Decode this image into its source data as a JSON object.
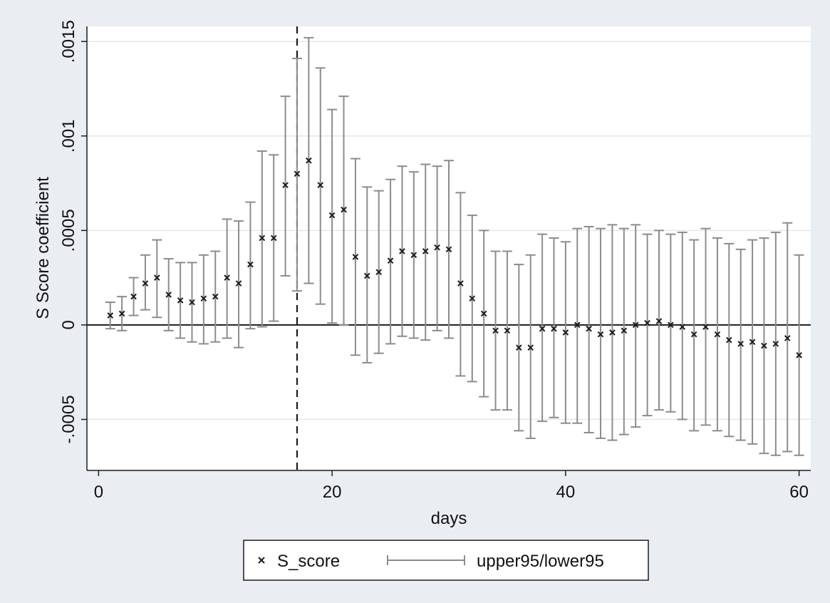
{
  "chart_data": {
    "type": "scatter",
    "title": "",
    "xlabel": "days",
    "ylabel": "S Score coefficient",
    "xlim": [
      -1,
      61
    ],
    "ylim": [
      -0.00077,
      0.00158
    ],
    "x_ticks": [
      {
        "value": 0,
        "label": "0"
      },
      {
        "value": 20,
        "label": "20"
      },
      {
        "value": 40,
        "label": "40"
      },
      {
        "value": 60,
        "label": "60"
      }
    ],
    "y_ticks": [
      {
        "value": -0.0005,
        "label": "-.0005"
      },
      {
        "value": 0,
        "label": "0"
      },
      {
        "value": 0.0005,
        "label": ".0005"
      },
      {
        "value": 0.001,
        "label": ".001"
      },
      {
        "value": 0.0015,
        "label": ".0015"
      }
    ],
    "grid": true,
    "zero_line": true,
    "reference_line_x": 17,
    "legend": {
      "placement": "bottom",
      "entries": [
        "S_score",
        "upper95/lower95"
      ]
    },
    "colors": {
      "outer_background": "#eaeef2",
      "plot_background": "#ffffff",
      "gridline": "#e4e6ea",
      "marker": "#1c1c1c",
      "error_bar": "#8c8c8c",
      "zero_line": "#1c1c1c",
      "reference_line": "#1c1c1c",
      "axis": "#1c1c1c"
    },
    "series": [
      {
        "name": "S_score",
        "x": [
          1,
          2,
          3,
          4,
          5,
          6,
          7,
          8,
          9,
          10,
          11,
          12,
          13,
          14,
          15,
          16,
          17,
          18,
          19,
          20,
          21,
          22,
          23,
          24,
          25,
          26,
          27,
          28,
          29,
          30,
          31,
          32,
          33,
          34,
          35,
          36,
          37,
          38,
          39,
          40,
          41,
          42,
          43,
          44,
          45,
          46,
          47,
          48,
          49,
          50,
          51,
          52,
          53,
          54,
          55,
          56,
          57,
          58,
          59,
          60
        ],
        "y": [
          5e-05,
          6e-05,
          0.00015,
          0.00022,
          0.00025,
          0.00016,
          0.00013,
          0.00012,
          0.00014,
          0.00015,
          0.00025,
          0.00022,
          0.00032,
          0.00046,
          0.00046,
          0.00074,
          0.0008,
          0.00087,
          0.00074,
          0.00058,
          0.00061,
          0.00036,
          0.00026,
          0.00028,
          0.00034,
          0.00039,
          0.00037,
          0.00039,
          0.00041,
          0.0004,
          0.00022,
          0.00014,
          6e-05,
          -3e-05,
          -3e-05,
          -0.00012,
          -0.00012,
          -2e-05,
          -2e-05,
          -4e-05,
          0.0,
          -2e-05,
          -5e-05,
          -4e-05,
          -3e-05,
          0.0,
          1e-05,
          2e-05,
          0.0,
          -1e-05,
          -5e-05,
          -1e-05,
          -5e-05,
          -8e-05,
          -0.0001,
          -9e-05,
          -0.00011,
          -0.0001,
          -7e-05,
          -0.00016
        ]
      },
      {
        "name": "upper95/lower95",
        "x": [
          1,
          2,
          3,
          4,
          5,
          6,
          7,
          8,
          9,
          10,
          11,
          12,
          13,
          14,
          15,
          16,
          17,
          18,
          19,
          20,
          21,
          22,
          23,
          24,
          25,
          26,
          27,
          28,
          29,
          30,
          31,
          32,
          33,
          34,
          35,
          36,
          37,
          38,
          39,
          40,
          41,
          42,
          43,
          44,
          45,
          46,
          47,
          48,
          49,
          50,
          51,
          52,
          53,
          54,
          55,
          56,
          57,
          58,
          59,
          60
        ],
        "upper": [
          0.00012,
          0.00015,
          0.00025,
          0.00037,
          0.00045,
          0.00035,
          0.00033,
          0.00033,
          0.00037,
          0.00039,
          0.00056,
          0.00055,
          0.00065,
          0.00092,
          0.0009,
          0.00121,
          0.00141,
          0.00152,
          0.00136,
          0.00114,
          0.00121,
          0.00088,
          0.00073,
          0.00071,
          0.00077,
          0.00084,
          0.00081,
          0.00085,
          0.00084,
          0.00087,
          0.0007,
          0.00058,
          0.0005,
          0.00039,
          0.00039,
          0.00032,
          0.00037,
          0.00048,
          0.00046,
          0.00044,
          0.00051,
          0.00052,
          0.00051,
          0.00053,
          0.00051,
          0.00053,
          0.00048,
          0.0005,
          0.00048,
          0.00049,
          0.00045,
          0.00051,
          0.00046,
          0.00043,
          0.0004,
          0.00045,
          0.00046,
          0.00049,
          0.00054,
          0.00037
        ],
        "lower": [
          -2e-05,
          -3e-05,
          5e-05,
          8e-05,
          4e-05,
          -3e-05,
          -7e-05,
          -9e-05,
          -0.0001,
          -9e-05,
          -7e-05,
          -0.00012,
          -2e-05,
          -1e-05,
          2e-05,
          0.00026,
          0.00018,
          0.00022,
          0.00011,
          1e-05,
          0.0,
          -0.00016,
          -0.0002,
          -0.00015,
          -0.0001,
          -6e-05,
          -7e-05,
          -8e-05,
          -3e-05,
          -7e-05,
          -0.00027,
          -0.0003,
          -0.00038,
          -0.00045,
          -0.00045,
          -0.00056,
          -0.0006,
          -0.00051,
          -0.00049,
          -0.00052,
          -0.00052,
          -0.00057,
          -0.0006,
          -0.00061,
          -0.00058,
          -0.00054,
          -0.00048,
          -0.00045,
          -0.00046,
          -0.0005,
          -0.00056,
          -0.00053,
          -0.00056,
          -0.00059,
          -0.00061,
          -0.00063,
          -0.00068,
          -0.00069,
          -0.00067,
          -0.00069
        ]
      }
    ]
  }
}
